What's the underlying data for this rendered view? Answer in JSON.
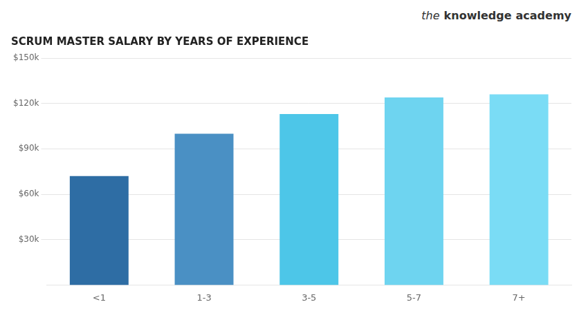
{
  "chart_data": {
    "type": "bar",
    "title": "SCRUM MASTER SALARY BY YEARS OF EXPERIENCE",
    "annotations": [
      "the",
      "knowledge",
      "academy"
    ],
    "categories": [
      "<1",
      "1-3",
      "3-5",
      "5-7",
      "7+"
    ],
    "values": [
      72000,
      100000,
      113000,
      124000,
      126000
    ],
    "colors": [
      "#2e6da4",
      "#4a90c4",
      "#4dc6e8",
      "#6ed4f0",
      "#7adcf5"
    ],
    "ylim": [
      0,
      150000
    ],
    "yticks": [
      {
        "value": 30000,
        "label": "$30k"
      },
      {
        "value": 60000,
        "label": "$60k"
      },
      {
        "value": 90000,
        "label": "$90k"
      },
      {
        "value": 120000,
        "label": "$120k"
      },
      {
        "value": 150000,
        "label": "$150k"
      }
    ],
    "grid": true
  }
}
